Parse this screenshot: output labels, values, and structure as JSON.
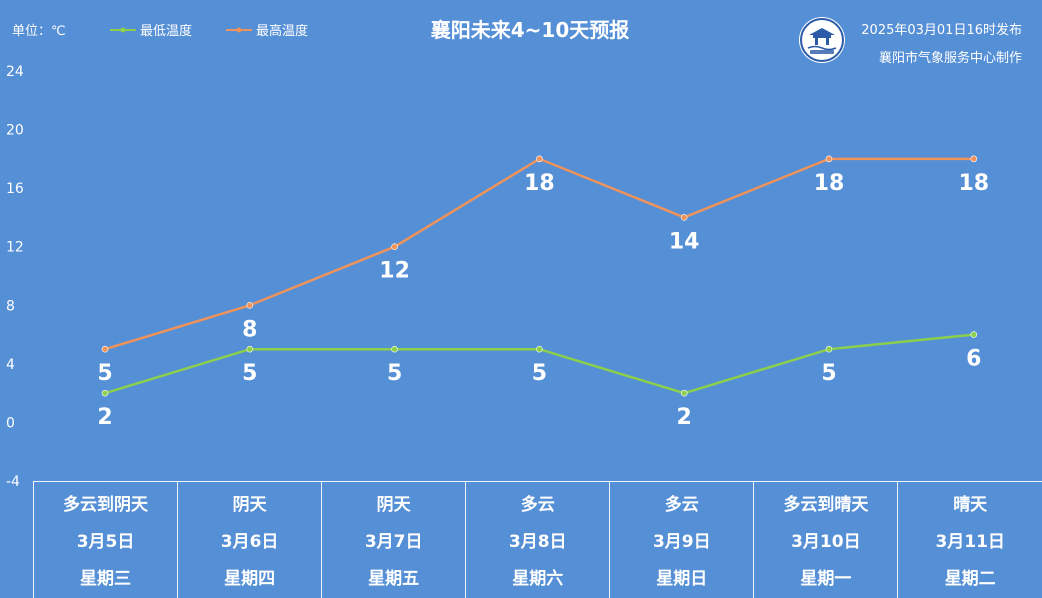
{
  "header": {
    "unit_label": "单位：℃",
    "title": "襄阳未来4~10天预报",
    "publish_time": "2025年03月01日16时发布",
    "publisher": "襄阳市气象服务中心制作",
    "logo_icon": "xiangyang-weather-logo"
  },
  "colors": {
    "background": "#558fd6",
    "low_line": "#8ccf4d",
    "high_line": "#f0935a"
  },
  "chart_data": {
    "type": "line",
    "categories": [
      "3月5日",
      "3月6日",
      "3月7日",
      "3月8日",
      "3月9日",
      "3月10日",
      "3月11日"
    ],
    "series": [
      {
        "name": "最低温度",
        "values": [
          2,
          5,
          5,
          5,
          2,
          5,
          6
        ]
      },
      {
        "name": "最高温度",
        "values": [
          5,
          8,
          12,
          18,
          14,
          18,
          18
        ]
      }
    ],
    "ylim": [
      -4,
      24
    ],
    "yticks": [
      "24",
      "20",
      "16",
      "12",
      "8",
      "4",
      "0",
      "-4"
    ],
    "legend_position": "top-left",
    "grid": false
  },
  "days": [
    {
      "weather": "多云到阴天",
      "date": "3月5日",
      "weekday": "星期三"
    },
    {
      "weather": "阴天",
      "date": "3月6日",
      "weekday": "星期四"
    },
    {
      "weather": "阴天",
      "date": "3月7日",
      "weekday": "星期五"
    },
    {
      "weather": "多云",
      "date": "3月8日",
      "weekday": "星期六"
    },
    {
      "weather": "多云",
      "date": "3月9日",
      "weekday": "星期日"
    },
    {
      "weather": "多云到晴天",
      "date": "3月10日",
      "weekday": "星期一"
    },
    {
      "weather": "晴天",
      "date": "3月11日",
      "weekday": "星期二"
    }
  ]
}
